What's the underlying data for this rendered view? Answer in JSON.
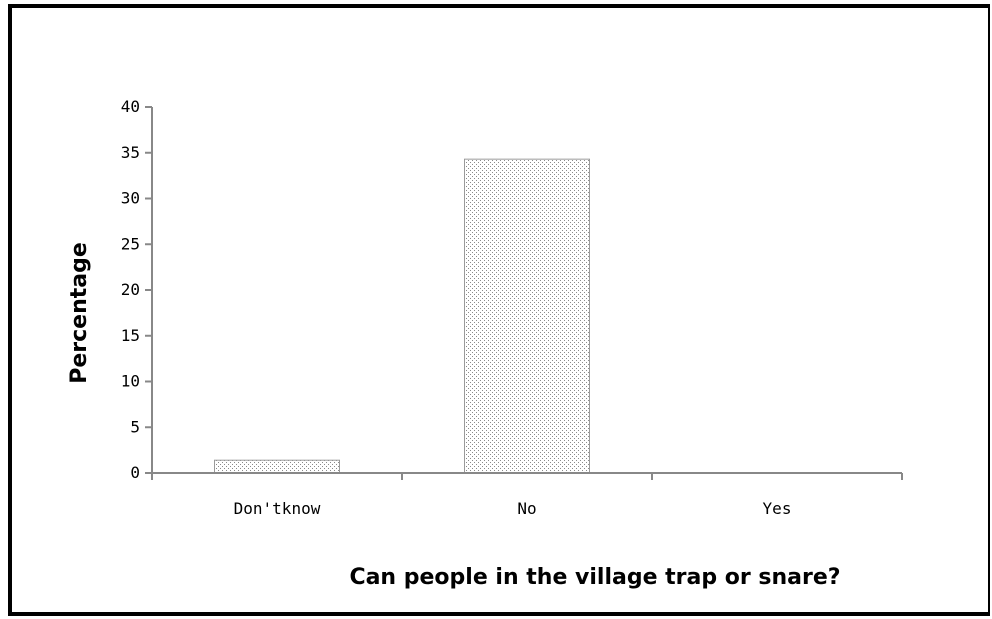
{
  "chart_data": {
    "type": "bar",
    "categories": [
      "Don'tknow",
      "No",
      "Yes"
    ],
    "values": [
      1.4,
      34.3,
      0
    ],
    "title": "",
    "xlabel": "Can people in the village trap or snare?",
    "ylabel": "Percentage",
    "ylim": [
      0,
      40
    ],
    "yticks": [
      0,
      5,
      10,
      15,
      20,
      25,
      30,
      35,
      40
    ],
    "grid": false,
    "legend": "none",
    "bar_pattern": "stippled",
    "bar_color": "#e6e6e6"
  }
}
